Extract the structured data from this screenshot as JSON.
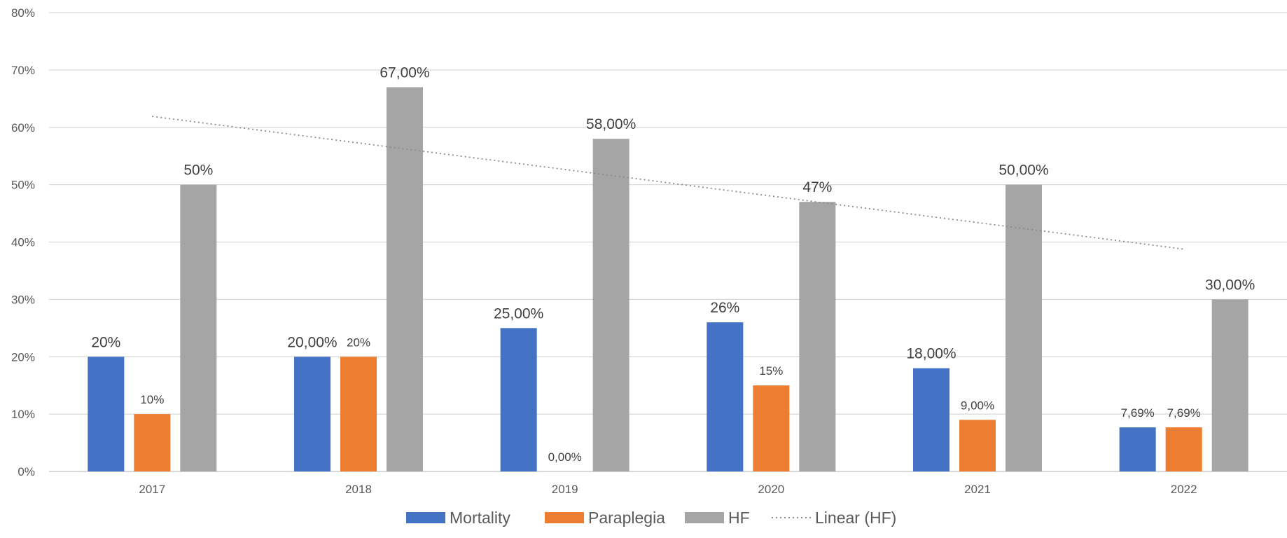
{
  "chart_data": {
    "type": "bar",
    "categories": [
      "2017",
      "2018",
      "2019",
      "2020",
      "2021",
      "2022"
    ],
    "series": [
      {
        "name": "Mortality",
        "color": "#4472C4",
        "values": [
          20,
          20,
          25,
          26,
          18,
          7.69
        ],
        "labels": [
          "20%",
          "20,00%",
          "25,00%",
          "26%",
          "18,00%",
          "7,69%"
        ]
      },
      {
        "name": "Paraplegia",
        "color": "#ED7D31",
        "values": [
          10,
          20,
          0,
          15,
          9,
          7.69
        ],
        "labels": [
          "10%",
          "20%",
          "0,00%",
          "15%",
          "9,00%",
          "7,69%"
        ]
      },
      {
        "name": "HF",
        "color": "#A5A5A5",
        "values": [
          50,
          67,
          58,
          47,
          50,
          30
        ],
        "labels": [
          "50%",
          "67,00%",
          "58,00%",
          "47%",
          "50,00%",
          "30,00%"
        ]
      }
    ],
    "trendline": {
      "name": "Linear (HF)",
      "series": "HF",
      "type": "linear",
      "color": "#A5A5A5",
      "style": "dotted"
    },
    "ylim": [
      0,
      80
    ],
    "yticks": [
      0,
      10,
      20,
      30,
      40,
      50,
      60,
      70,
      80
    ],
    "ytick_labels": [
      "0%",
      "10%",
      "20%",
      "30%",
      "40%",
      "50%",
      "60%",
      "70%",
      "80%"
    ],
    "title": "",
    "xlabel": "",
    "ylabel": "",
    "grid": true,
    "legend_position": "bottom"
  }
}
